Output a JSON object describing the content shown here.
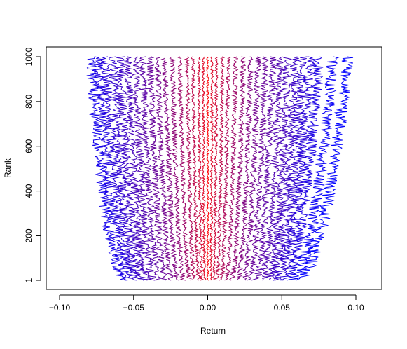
{
  "chart_data": {
    "type": "line",
    "title": "",
    "xlabel": "Return",
    "ylabel": "Rank",
    "xlim": [
      -0.12,
      0.12
    ],
    "ylim": [
      1,
      1000
    ],
    "x_ticks": [
      -0.1,
      -0.05,
      0.0,
      0.05,
      0.1
    ],
    "x_tick_labels": [
      "−0.10",
      "−0.05",
      "0.00",
      "0.05",
      "0.10"
    ],
    "y_ticks": [
      1,
      200,
      400,
      600,
      800,
      1000
    ],
    "y_tick_labels": [
      "1",
      "200",
      "400",
      "600",
      "800",
      "1000"
    ],
    "grid": false,
    "legend": "none",
    "color_scale": {
      "center": "#ff0000",
      "edge": "#0000ff"
    },
    "series_profile": {
      "description_of_curves": "Approximately 40 jittery vertical traces; each trace's return at rank 1 and rank 1000",
      "offsets_at_rank_1": [
        -0.056,
        -0.052,
        -0.049,
        -0.046,
        -0.043,
        -0.04,
        -0.036,
        -0.032,
        -0.028,
        -0.024,
        -0.02,
        -0.016,
        -0.012,
        -0.009,
        -0.006,
        -0.004,
        -0.002,
        0.0,
        0.002,
        0.004,
        0.006,
        0.009,
        0.012,
        0.016,
        0.02,
        0.024,
        0.028,
        0.032,
        0.036,
        0.04,
        0.043,
        0.046,
        0.049,
        0.052,
        0.056,
        0.06
      ],
      "offsets_at_rank_1000": [
        -0.079,
        -0.074,
        -0.069,
        -0.064,
        -0.059,
        -0.054,
        -0.049,
        -0.044,
        -0.039,
        -0.034,
        -0.029,
        -0.024,
        -0.019,
        -0.014,
        -0.01,
        -0.006,
        -0.003,
        0.0,
        0.003,
        0.006,
        0.01,
        0.014,
        0.019,
        0.024,
        0.029,
        0.034,
        0.039,
        0.044,
        0.049,
        0.054,
        0.059,
        0.064,
        0.069,
        0.075,
        0.085,
        0.095
      ]
    }
  }
}
